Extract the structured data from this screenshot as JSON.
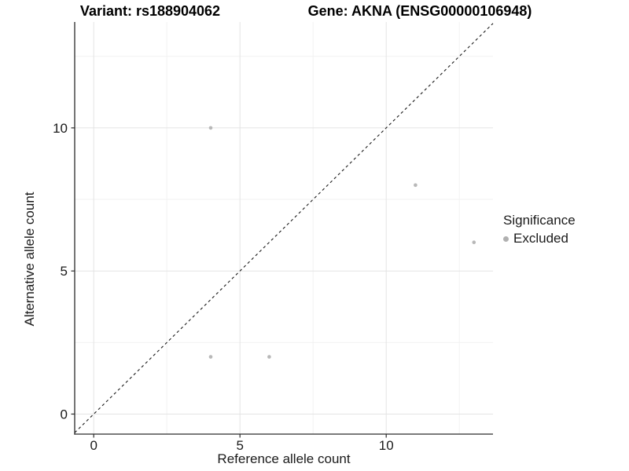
{
  "chart_data": {
    "type": "scatter",
    "title_left": "Variant: rs188904062",
    "title_right": "Gene: AKNA (ENSG00000106948)",
    "xlabel": "Reference allele count",
    "ylabel": "Alternative allele count",
    "x_ticks": [
      0,
      5,
      10
    ],
    "y_ticks": [
      0,
      5,
      10
    ],
    "x_minor_ticks": [
      2.5,
      7.5,
      12.5
    ],
    "y_minor_ticks": [
      2.5,
      7.5,
      12.5
    ],
    "xlim": [
      -0.65,
      13.65
    ],
    "ylim": [
      -0.7,
      13.7
    ],
    "grid": true,
    "identity_line": {
      "style": "dashed",
      "color": "#1a1a1a"
    },
    "series": [
      {
        "name": "Excluded",
        "color": "#b8b8b8",
        "points": [
          [
            4,
            10
          ],
          [
            11,
            8
          ],
          [
            13,
            6
          ],
          [
            4,
            2
          ],
          [
            6,
            2
          ]
        ]
      }
    ],
    "legend": {
      "title": "Significance",
      "position": "right",
      "items": [
        {
          "label": "Excluded",
          "color": "#b0b0b0"
        }
      ]
    },
    "colors": {
      "grid_major": "#e4e4e4",
      "grid_minor": "#f2f2f2",
      "axis_line": "#2a2a2a",
      "tick_text": "#1a1a1a"
    }
  }
}
